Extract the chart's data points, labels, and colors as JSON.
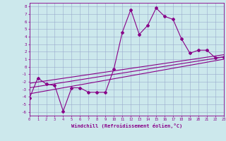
{
  "xlabel": "Windchill (Refroidissement éolien,°C)",
  "bg_color": "#cce8ec",
  "line_color": "#880088",
  "grid_color": "#99aacc",
  "xlim": [
    0,
    23
  ],
  "ylim": [
    -6.5,
    8.5
  ],
  "xticks": [
    0,
    1,
    2,
    3,
    4,
    5,
    6,
    7,
    8,
    9,
    10,
    11,
    12,
    13,
    14,
    15,
    16,
    17,
    18,
    19,
    20,
    21,
    22,
    23
  ],
  "yticks": [
    -6,
    -5,
    -4,
    -3,
    -2,
    -1,
    0,
    1,
    2,
    3,
    4,
    5,
    6,
    7,
    8
  ],
  "scatter_x": [
    0,
    1,
    2,
    3,
    4,
    5,
    6,
    7,
    8,
    9,
    10,
    11,
    12,
    13,
    14,
    15,
    16,
    17,
    18,
    19,
    20,
    21,
    22,
    23
  ],
  "scatter_y": [
    -4.2,
    -1.5,
    -2.3,
    -2.5,
    -5.9,
    -2.8,
    -2.8,
    -3.4,
    -3.4,
    -3.4,
    -0.3,
    4.6,
    7.6,
    4.3,
    5.5,
    7.8,
    6.7,
    6.3,
    3.7,
    1.8,
    2.2,
    2.2,
    1.2,
    1.3
  ],
  "line1_x": [
    0,
    23
  ],
  "line1_y": [
    -3.6,
    1.0
  ],
  "line2_x": [
    0,
    23
  ],
  "line2_y": [
    -2.8,
    1.3
  ],
  "line3_x": [
    0,
    23
  ],
  "line3_y": [
    -2.2,
    1.6
  ]
}
